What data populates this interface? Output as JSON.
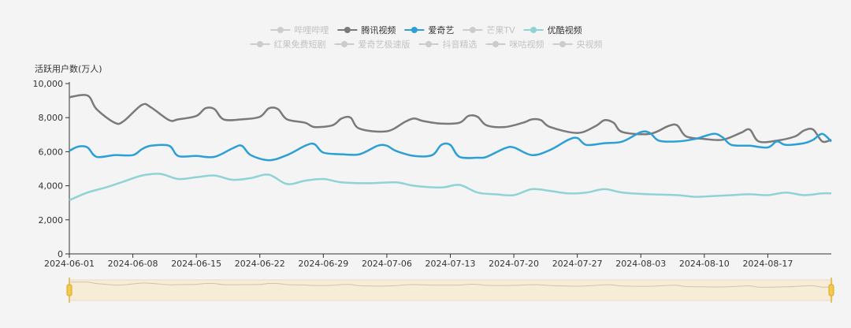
{
  "chart_data": {
    "type": "line",
    "ylabel": "活跃用户数(万人)",
    "ylim": [
      0,
      10000
    ],
    "yticks": [
      "0",
      "2,000",
      "4,000",
      "6,000",
      "8,000",
      "10,000"
    ],
    "x_tick_labels": [
      "2024-06-01",
      "2024-06-08",
      "2024-06-15",
      "2024-06-22",
      "2024-06-29",
      "2024-07-06",
      "2024-07-13",
      "2024-07-20",
      "2024-07-27",
      "2024-08-03",
      "2024-08-10",
      "2024-08-17"
    ],
    "x_start": "2024-06-01",
    "x_end": "2024-08-24",
    "legend_position": "top-center",
    "legend": [
      {
        "name": "哔哩哔哩",
        "active": false
      },
      {
        "name": "腾讯视频",
        "active": true
      },
      {
        "name": "爱奇艺",
        "active": true
      },
      {
        "name": "芒果TV",
        "active": false
      },
      {
        "name": "优酷视频",
        "active": true
      },
      {
        "name": "红果免费短剧",
        "active": false
      },
      {
        "name": "爱奇艺极速版",
        "active": false
      },
      {
        "name": "抖音精选",
        "active": false
      },
      {
        "name": "咪咕视频",
        "active": false
      },
      {
        "name": "央视频",
        "active": false
      }
    ],
    "series": [
      {
        "name": "腾讯视频",
        "color": "#7a7a7a",
        "points": [
          [
            "2024-06-01",
            9200
          ],
          [
            "2024-06-03",
            9300
          ],
          [
            "2024-06-04",
            8500
          ],
          [
            "2024-06-06",
            7700
          ],
          [
            "2024-06-07",
            7800
          ],
          [
            "2024-06-09",
            8750
          ],
          [
            "2024-06-10",
            8600
          ],
          [
            "2024-06-12",
            7850
          ],
          [
            "2024-06-13",
            7900
          ],
          [
            "2024-06-15",
            8100
          ],
          [
            "2024-06-16",
            8550
          ],
          [
            "2024-06-17",
            8500
          ],
          [
            "2024-06-18",
            7900
          ],
          [
            "2024-06-20",
            7900
          ],
          [
            "2024-06-22",
            8050
          ],
          [
            "2024-06-23",
            8550
          ],
          [
            "2024-06-24",
            8500
          ],
          [
            "2024-06-25",
            7900
          ],
          [
            "2024-06-27",
            7700
          ],
          [
            "2024-06-28",
            7450
          ],
          [
            "2024-06-30",
            7550
          ],
          [
            "2024-07-01",
            7950
          ],
          [
            "2024-07-02",
            8000
          ],
          [
            "2024-07-03",
            7350
          ],
          [
            "2024-07-06",
            7200
          ],
          [
            "2024-07-08",
            7750
          ],
          [
            "2024-07-09",
            7950
          ],
          [
            "2024-07-10",
            7800
          ],
          [
            "2024-07-12",
            7650
          ],
          [
            "2024-07-14",
            7700
          ],
          [
            "2024-07-15",
            8100
          ],
          [
            "2024-07-16",
            8050
          ],
          [
            "2024-07-17",
            7550
          ],
          [
            "2024-07-19",
            7450
          ],
          [
            "2024-07-21",
            7700
          ],
          [
            "2024-07-22",
            7900
          ],
          [
            "2024-07-23",
            7850
          ],
          [
            "2024-07-24",
            7450
          ],
          [
            "2024-07-27",
            7100
          ],
          [
            "2024-07-29",
            7500
          ],
          [
            "2024-07-30",
            7850
          ],
          [
            "2024-07-31",
            7700
          ],
          [
            "2024-08-01",
            7150
          ],
          [
            "2024-08-04",
            7050
          ],
          [
            "2024-08-06",
            7500
          ],
          [
            "2024-08-07",
            7550
          ],
          [
            "2024-08-08",
            6900
          ],
          [
            "2024-08-10",
            6750
          ],
          [
            "2024-08-12",
            6700
          ],
          [
            "2024-08-14",
            7100
          ],
          [
            "2024-08-15",
            7300
          ],
          [
            "2024-08-16",
            6600
          ],
          [
            "2024-08-18",
            6650
          ],
          [
            "2024-08-20",
            6900
          ],
          [
            "2024-08-21",
            7250
          ],
          [
            "2024-08-22",
            7300
          ],
          [
            "2024-08-23",
            6600
          ],
          [
            "2024-08-24",
            6700
          ]
        ]
      },
      {
        "name": "爱奇艺",
        "color": "#2b9fd6",
        "points": [
          [
            "2024-06-01",
            6050
          ],
          [
            "2024-06-02",
            6300
          ],
          [
            "2024-06-03",
            6250
          ],
          [
            "2024-06-04",
            5700
          ],
          [
            "2024-06-06",
            5800
          ],
          [
            "2024-06-08",
            5800
          ],
          [
            "2024-06-09",
            6150
          ],
          [
            "2024-06-10",
            6350
          ],
          [
            "2024-06-12",
            6350
          ],
          [
            "2024-06-13",
            5750
          ],
          [
            "2024-06-15",
            5750
          ],
          [
            "2024-06-17",
            5700
          ],
          [
            "2024-06-19",
            6200
          ],
          [
            "2024-06-20",
            6350
          ],
          [
            "2024-06-21",
            5800
          ],
          [
            "2024-06-23",
            5500
          ],
          [
            "2024-06-25",
            5800
          ],
          [
            "2024-06-27",
            6350
          ],
          [
            "2024-06-28",
            6450
          ],
          [
            "2024-06-29",
            5950
          ],
          [
            "2024-07-01",
            5850
          ],
          [
            "2024-07-03",
            5850
          ],
          [
            "2024-07-05",
            6350
          ],
          [
            "2024-07-06",
            6350
          ],
          [
            "2024-07-07",
            6050
          ],
          [
            "2024-07-09",
            5750
          ],
          [
            "2024-07-11",
            5800
          ],
          [
            "2024-07-12",
            6400
          ],
          [
            "2024-07-13",
            6400
          ],
          [
            "2024-07-14",
            5700
          ],
          [
            "2024-07-16",
            5650
          ],
          [
            "2024-07-17",
            5700
          ],
          [
            "2024-07-19",
            6200
          ],
          [
            "2024-07-20",
            6250
          ],
          [
            "2024-07-22",
            5800
          ],
          [
            "2024-07-24",
            6100
          ],
          [
            "2024-07-26",
            6700
          ],
          [
            "2024-07-27",
            6800
          ],
          [
            "2024-07-28",
            6400
          ],
          [
            "2024-07-30",
            6500
          ],
          [
            "2024-08-01",
            6600
          ],
          [
            "2024-08-03",
            7150
          ],
          [
            "2024-08-04",
            7100
          ],
          [
            "2024-08-05",
            6650
          ],
          [
            "2024-08-07",
            6600
          ],
          [
            "2024-08-09",
            6750
          ],
          [
            "2024-08-11",
            7050
          ],
          [
            "2024-08-12",
            6850
          ],
          [
            "2024-08-13",
            6400
          ],
          [
            "2024-08-15",
            6350
          ],
          [
            "2024-08-17",
            6250
          ],
          [
            "2024-08-18",
            6600
          ],
          [
            "2024-08-19",
            6400
          ],
          [
            "2024-08-21",
            6500
          ],
          [
            "2024-08-22",
            6700
          ],
          [
            "2024-08-23",
            7050
          ],
          [
            "2024-08-24",
            6600
          ]
        ]
      },
      {
        "name": "优酷视频",
        "color": "#8fd3d6",
        "points": [
          [
            "2024-06-01",
            3150
          ],
          [
            "2024-06-03",
            3600
          ],
          [
            "2024-06-05",
            3900
          ],
          [
            "2024-06-07",
            4250
          ],
          [
            "2024-06-09",
            4600
          ],
          [
            "2024-06-11",
            4700
          ],
          [
            "2024-06-13",
            4400
          ],
          [
            "2024-06-15",
            4500
          ],
          [
            "2024-06-17",
            4600
          ],
          [
            "2024-06-19",
            4350
          ],
          [
            "2024-06-21",
            4450
          ],
          [
            "2024-06-23",
            4650
          ],
          [
            "2024-06-25",
            4100
          ],
          [
            "2024-06-27",
            4300
          ],
          [
            "2024-06-29",
            4400
          ],
          [
            "2024-07-01",
            4200
          ],
          [
            "2024-07-04",
            4150
          ],
          [
            "2024-07-07",
            4200
          ],
          [
            "2024-07-09",
            4000
          ],
          [
            "2024-07-12",
            3900
          ],
          [
            "2024-07-14",
            4050
          ],
          [
            "2024-07-16",
            3600
          ],
          [
            "2024-07-18",
            3500
          ],
          [
            "2024-07-20",
            3450
          ],
          [
            "2024-07-22",
            3800
          ],
          [
            "2024-07-24",
            3700
          ],
          [
            "2024-07-26",
            3550
          ],
          [
            "2024-07-28",
            3600
          ],
          [
            "2024-07-30",
            3800
          ],
          [
            "2024-08-01",
            3600
          ],
          [
            "2024-08-04",
            3500
          ],
          [
            "2024-08-07",
            3450
          ],
          [
            "2024-08-09",
            3350
          ],
          [
            "2024-08-11",
            3400
          ],
          [
            "2024-08-13",
            3450
          ],
          [
            "2024-08-15",
            3500
          ],
          [
            "2024-08-17",
            3450
          ],
          [
            "2024-08-19",
            3600
          ],
          [
            "2024-08-21",
            3450
          ],
          [
            "2024-08-23",
            3550
          ],
          [
            "2024-08-24",
            3550
          ]
        ]
      }
    ]
  }
}
